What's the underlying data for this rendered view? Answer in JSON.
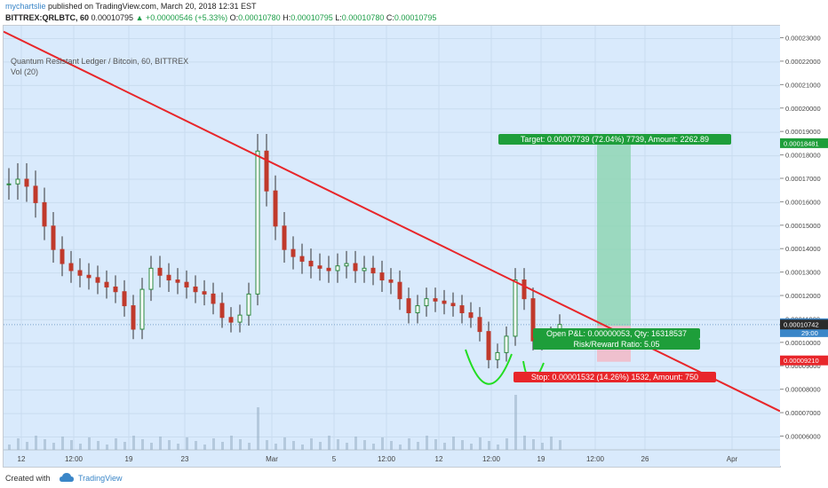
{
  "header": {
    "author": "mychartslie",
    "published": " published on TradingView.com, March 20, 2018 12:31 EST",
    "symbol": "BITTREX:QRLBTC, 60",
    "last": " 0.00010795",
    "change": " +0.00000546 (+5.33%)",
    "o_label": " O:",
    "o": "0.00010780",
    "h_label": " H:",
    "h": "0.00010795",
    "l_label": " L:",
    "l": "0.00010780",
    "c_label": " C:",
    "c": "0.00010795"
  },
  "legend": {
    "title": "Quantum Resistant Ledger / Bitcoin, 60, BITTREX",
    "volume": "Vol (20)"
  },
  "footer": {
    "created": "Created with",
    "brand": "TradingView"
  },
  "chart_data": {
    "type": "line",
    "subtype": "candlestick",
    "y_axis_ticks": [
      "0.00023000",
      "0.00022000",
      "0.00021000",
      "0.00020000",
      "0.00019000",
      "0.00018000",
      "0.00017000",
      "0.00016000",
      "0.00015000",
      "0.00014000",
      "0.00013000",
      "0.00012000",
      "0.00011000",
      "0.00010000",
      "0.00009000",
      "0.00008000",
      "0.00007000",
      "0.00006000"
    ],
    "ylim": [
      5.45e-05,
      0.0002355
    ],
    "x_axis_ticks": [
      "12",
      "12:00",
      "19",
      "23",
      "Mar",
      "5",
      "12:00",
      "12",
      "12:00",
      "19",
      "12:00",
      "26",
      "Apr"
    ],
    "series": [
      {
        "name": "QRLBTC",
        "x": [
          0,
          10,
          20,
          30,
          40,
          50,
          60,
          70,
          80,
          90,
          100,
          110,
          120,
          130,
          140,
          150,
          160,
          170,
          180,
          190,
          200,
          210,
          220,
          230,
          240,
          250,
          260,
          270,
          280,
          290,
          300,
          310,
          320,
          330,
          340,
          350,
          360,
          370,
          380,
          390,
          400,
          410,
          420,
          430,
          440,
          450,
          460,
          470,
          480,
          490,
          500,
          510,
          520,
          530,
          540,
          550,
          560,
          570,
          580,
          590,
          600,
          610,
          620
        ],
        "values": [
          0.000168,
          0.00017,
          0.000167,
          0.00016,
          0.00015,
          0.00014,
          0.000134,
          0.000131,
          0.000129,
          0.000128,
          0.000126,
          0.000124,
          0.000122,
          0.000116,
          0.000106,
          0.000123,
          0.000132,
          0.000129,
          0.000127,
          0.000126,
          0.000124,
          0.000122,
          0.000121,
          0.000117,
          0.000111,
          0.000109,
          0.000112,
          0.000121,
          0.000182,
          0.000165,
          0.00015,
          0.00014,
          0.000137,
          0.000135,
          0.000133,
          0.000132,
          0.000131,
          0.000133,
          0.000134,
          0.000131,
          0.000132,
          0.00013,
          0.000127,
          0.000126,
          0.000119,
          0.000113,
          0.000116,
          0.000119,
          0.000118,
          0.000117,
          0.000116,
          0.000113,
          0.000111,
          0.000105,
          9.3e-05,
          9.6e-05,
          0.000103,
          0.000127,
          0.000119,
          0.000101,
          0.000102,
          0.000103,
          0.000108
        ]
      }
    ],
    "trendline": {
      "from": [
        0,
        0.000233
      ],
      "to": [
        874,
        7.1e-05
      ]
    },
    "position": {
      "target_label": "Target: 0.00007739 (72.04%) 7739, Amount: 2262.89",
      "pnl_label": "Open P&L: 0.00000053, Qty: 16318537",
      "rr_label": "Risk/Reward Ratio: 5.05",
      "stop_label": "Stop: 0.00001532 (14.26%) 1532, Amount: 750",
      "entry": 0.00010742,
      "target": 0.00018481,
      "stop": 9.21e-05
    },
    "price_tags": {
      "target": "0.00018481",
      "last": "0.00010795",
      "countdown": "29:00",
      "entry": "0.00010742",
      "stop": "0.00009210"
    },
    "grid": true
  },
  "colors": {
    "background": "#d9eafc",
    "trendline": "#e8262a",
    "target_zone": "#8fd6b4",
    "stop_zone": "#f2b8c6",
    "target_tag": "#1e9e3a",
    "stop_tag": "#e8262a",
    "last_tag": "#3a86c8",
    "price_line": "#7ba4cc",
    "annotation": "#22dd22"
  }
}
